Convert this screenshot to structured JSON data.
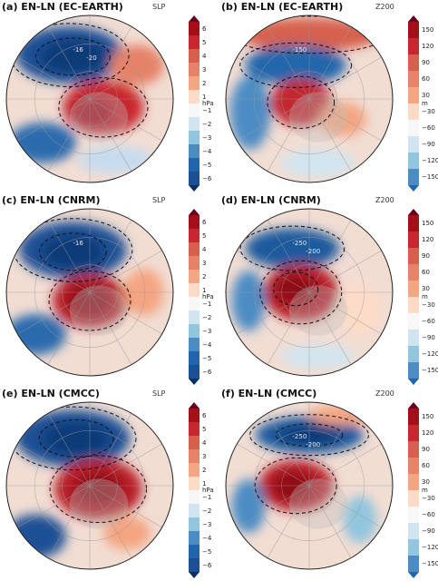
{
  "panels": [
    {
      "id": "a",
      "title": "(a) EN-LN (EC-EARTH)",
      "variable": "SLP",
      "unit": "hPa",
      "scale": "slp",
      "blobs": [
        {
          "fx": 0.38,
          "fy": 0.24,
          "rx": 0.32,
          "ry": 0.17,
          "c": "#1c4f94"
        },
        {
          "fx": 0.4,
          "fy": 0.25,
          "rx": 0.2,
          "ry": 0.1,
          "c": "#0d3a78"
        },
        {
          "fx": 0.58,
          "fy": 0.55,
          "rx": 0.24,
          "ry": 0.16,
          "c": "#c9272f"
        },
        {
          "fx": 0.52,
          "fy": 0.58,
          "rx": 0.12,
          "ry": 0.09,
          "c": "#a50f1a"
        },
        {
          "fx": 0.22,
          "fy": 0.76,
          "rx": 0.2,
          "ry": 0.12,
          "c": "#2a6aad"
        },
        {
          "fx": 0.78,
          "fy": 0.3,
          "rx": 0.16,
          "ry": 0.12,
          "c": "#e58268"
        },
        {
          "fx": 0.65,
          "fy": 0.86,
          "rx": 0.22,
          "ry": 0.08,
          "c": "#c6dbef"
        }
      ]
    },
    {
      "id": "b",
      "title": "(b) EN-LN (EC-EARTH)",
      "variable": "Z200",
      "unit": "m",
      "scale": "z200",
      "blobs": [
        {
          "fx": 0.5,
          "fy": 0.12,
          "rx": 0.42,
          "ry": 0.1,
          "c": "#d6604d"
        },
        {
          "fx": 0.42,
          "fy": 0.3,
          "rx": 0.3,
          "ry": 0.12,
          "c": "#2166ac"
        },
        {
          "fx": 0.45,
          "fy": 0.52,
          "rx": 0.18,
          "ry": 0.14,
          "c": "#c4262e"
        },
        {
          "fx": 0.15,
          "fy": 0.58,
          "rx": 0.12,
          "ry": 0.22,
          "c": "#4b8cc4"
        },
        {
          "fx": 0.7,
          "fy": 0.62,
          "rx": 0.14,
          "ry": 0.1,
          "c": "#f4a582"
        },
        {
          "fx": 0.55,
          "fy": 0.88,
          "rx": 0.22,
          "ry": 0.08,
          "c": "#d1e5f0"
        }
      ]
    },
    {
      "id": "c",
      "title": "(c) EN-LN (CNRM)",
      "variable": "SLP",
      "unit": "hPa",
      "scale": "slp",
      "blobs": [
        {
          "fx": 0.4,
          "fy": 0.25,
          "rx": 0.32,
          "ry": 0.17,
          "c": "#1c4f94"
        },
        {
          "fx": 0.4,
          "fy": 0.26,
          "rx": 0.18,
          "ry": 0.1,
          "c": "#0d3a78"
        },
        {
          "fx": 0.5,
          "fy": 0.55,
          "rx": 0.22,
          "ry": 0.16,
          "c": "#b81b26"
        },
        {
          "fx": 0.5,
          "fy": 0.55,
          "rx": 0.13,
          "ry": 0.1,
          "c": "#8e0b17"
        },
        {
          "fx": 0.18,
          "fy": 0.75,
          "rx": 0.18,
          "ry": 0.12,
          "c": "#2a6aad"
        },
        {
          "fx": 0.82,
          "fy": 0.5,
          "rx": 0.12,
          "ry": 0.14,
          "c": "#f4a582"
        }
      ]
    },
    {
      "id": "d",
      "title": "(d) EN-LN (CNRM)",
      "variable": "Z200",
      "unit": "m",
      "scale": "z200",
      "blobs": [
        {
          "fx": 0.4,
          "fy": 0.24,
          "rx": 0.28,
          "ry": 0.12,
          "c": "#1d5a9e"
        },
        {
          "fx": 0.45,
          "fy": 0.5,
          "rx": 0.22,
          "ry": 0.17,
          "c": "#b81b26"
        },
        {
          "fx": 0.42,
          "fy": 0.48,
          "rx": 0.12,
          "ry": 0.09,
          "c": "#8e0b17"
        },
        {
          "fx": 0.14,
          "fy": 0.55,
          "rx": 0.1,
          "ry": 0.18,
          "c": "#4b8cc4"
        },
        {
          "fx": 0.8,
          "fy": 0.6,
          "rx": 0.12,
          "ry": 0.16,
          "c": "#fddbc7"
        },
        {
          "fx": 0.55,
          "fy": 0.88,
          "rx": 0.22,
          "ry": 0.07,
          "c": "#d1e5f0"
        }
      ]
    },
    {
      "id": "e",
      "title": "(e) EN-LN (CMCC)",
      "variable": "SLP",
      "unit": "hPa",
      "scale": "slp",
      "blobs": [
        {
          "fx": 0.4,
          "fy": 0.22,
          "rx": 0.34,
          "ry": 0.17,
          "c": "#1c4f94"
        },
        {
          "fx": 0.42,
          "fy": 0.22,
          "rx": 0.2,
          "ry": 0.1,
          "c": "#0d3a78"
        },
        {
          "fx": 0.55,
          "fy": 0.52,
          "rx": 0.26,
          "ry": 0.18,
          "c": "#b81b26"
        },
        {
          "fx": 0.55,
          "fy": 0.52,
          "rx": 0.14,
          "ry": 0.1,
          "c": "#8e0b17"
        },
        {
          "fx": 0.18,
          "fy": 0.8,
          "rx": 0.18,
          "ry": 0.13,
          "c": "#1c4f94"
        },
        {
          "fx": 0.72,
          "fy": 0.78,
          "rx": 0.14,
          "ry": 0.1,
          "c": "#f4a582"
        }
      ]
    },
    {
      "id": "f",
      "title": "(f) EN-LN (CMCC)",
      "variable": "Z200",
      "unit": "m",
      "scale": "z200",
      "blobs": [
        {
          "fx": 0.5,
          "fy": 0.2,
          "rx": 0.32,
          "ry": 0.11,
          "c": "#1d5a9e"
        },
        {
          "fx": 0.5,
          "fy": 0.2,
          "rx": 0.18,
          "ry": 0.06,
          "c": "#0d3a78"
        },
        {
          "fx": 0.42,
          "fy": 0.5,
          "rx": 0.22,
          "ry": 0.15,
          "c": "#b81b26"
        },
        {
          "fx": 0.4,
          "fy": 0.5,
          "rx": 0.12,
          "ry": 0.08,
          "c": "#8e0b17"
        },
        {
          "fx": 0.14,
          "fy": 0.62,
          "rx": 0.1,
          "ry": 0.16,
          "c": "#4b8cc4"
        },
        {
          "fx": 0.7,
          "fy": 0.08,
          "rx": 0.2,
          "ry": 0.06,
          "c": "#f4a582"
        },
        {
          "fx": 0.8,
          "fy": 0.7,
          "rx": 0.1,
          "ry": 0.14,
          "c": "#92c5de"
        }
      ]
    }
  ],
  "colorbars": {
    "slp": {
      "ticks": [
        "6",
        "5",
        "4",
        "3",
        "2",
        "1",
        "−1",
        "−2",
        "−3",
        "−4",
        "−5",
        "−6"
      ],
      "unit": "hPa"
    },
    "z200": {
      "ticks": [
        "150",
        "120",
        "90",
        "60",
        "30",
        "−30",
        "−60",
        "−90",
        "−120",
        "−150"
      ],
      "unit": "m"
    }
  },
  "palette": [
    "#67001f",
    "#a50f1a",
    "#c9272f",
    "#d6604d",
    "#e58268",
    "#f4a582",
    "#fddbc7",
    "#f7f7f7",
    "#d1e5f0",
    "#92c5de",
    "#4b8cc4",
    "#2166ac",
    "#1c4f94",
    "#053061"
  ],
  "contour_labels": {
    "a": [
      "-16",
      "-20"
    ],
    "b": [
      "-150"
    ],
    "c": [
      "-16"
    ],
    "d": [
      "-250",
      "-200"
    ],
    "f": [
      "-250",
      "-200"
    ]
  }
}
